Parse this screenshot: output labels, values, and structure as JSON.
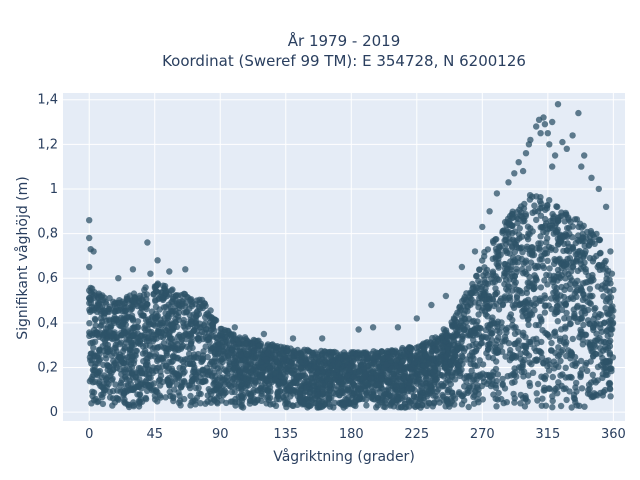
{
  "chart_data": {
    "type": "scatter",
    "title_lines": [
      "År 1979 - 2019",
      "Koordinat (Sweref 99 TM): E 354728, N 6200126"
    ],
    "xlabel": "Vågriktning (grader)",
    "ylabel": "Signifikant våghöjd (m)",
    "xlim": [
      -18,
      368
    ],
    "ylim": [
      -0.04,
      1.43
    ],
    "x_ticks": [
      0,
      45,
      90,
      135,
      180,
      225,
      270,
      315,
      360
    ],
    "x_tick_labels": [
      "0",
      "45",
      "90",
      "135",
      "180",
      "225",
      "270",
      "315",
      "360"
    ],
    "y_ticks": [
      0,
      0.2,
      0.4,
      0.6,
      0.8,
      1.0,
      1.2,
      1.4
    ],
    "y_tick_labels": [
      "0",
      "0,2",
      "0,4",
      "0,6",
      "0,8",
      "1",
      "1,2",
      "1,4"
    ],
    "grid": true,
    "marker_color": "#2e5368",
    "plot_bg": "#e5ecf6",
    "envelope": {
      "x": [
        0,
        10,
        20,
        30,
        45,
        60,
        70,
        80,
        90,
        100,
        110,
        130,
        150,
        170,
        190,
        210,
        230,
        240,
        250,
        260,
        270,
        280,
        290,
        300,
        310,
        320,
        330,
        340,
        350,
        360
      ],
      "y_min": [
        0.03,
        0.03,
        0.02,
        0.02,
        0.02,
        0.02,
        0.02,
        0.02,
        0.02,
        0.02,
        0.02,
        0.02,
        0.02,
        0.02,
        0.02,
        0.02,
        0.02,
        0.02,
        0.02,
        0.02,
        0.02,
        0.02,
        0.02,
        0.02,
        0.02,
        0.02,
        0.02,
        0.02,
        0.03,
        0.03
      ],
      "y_max": [
        0.58,
        0.52,
        0.5,
        0.53,
        0.58,
        0.55,
        0.52,
        0.5,
        0.38,
        0.35,
        0.33,
        0.3,
        0.28,
        0.27,
        0.27,
        0.28,
        0.31,
        0.35,
        0.42,
        0.55,
        0.7,
        0.82,
        0.9,
        0.97,
        0.98,
        0.93,
        0.88,
        0.85,
        0.8,
        0.55
      ]
    },
    "outliers": [
      {
        "x": 0,
        "y": 0.86
      },
      {
        "x": 0,
        "y": 0.78
      },
      {
        "x": 1,
        "y": 0.73
      },
      {
        "x": 3,
        "y": 0.72
      },
      {
        "x": 0,
        "y": 0.65
      },
      {
        "x": 40,
        "y": 0.76
      },
      {
        "x": 42,
        "y": 0.62
      },
      {
        "x": 47,
        "y": 0.68
      },
      {
        "x": 55,
        "y": 0.63
      },
      {
        "x": 66,
        "y": 0.64
      },
      {
        "x": 30,
        "y": 0.64
      },
      {
        "x": 20,
        "y": 0.6
      },
      {
        "x": 100,
        "y": 0.38
      },
      {
        "x": 120,
        "y": 0.35
      },
      {
        "x": 140,
        "y": 0.33
      },
      {
        "x": 160,
        "y": 0.33
      },
      {
        "x": 185,
        "y": 0.37
      },
      {
        "x": 195,
        "y": 0.38
      },
      {
        "x": 212,
        "y": 0.38
      },
      {
        "x": 225,
        "y": 0.42
      },
      {
        "x": 235,
        "y": 0.48
      },
      {
        "x": 245,
        "y": 0.52
      },
      {
        "x": 256,
        "y": 0.65
      },
      {
        "x": 265,
        "y": 0.72
      },
      {
        "x": 270,
        "y": 0.83
      },
      {
        "x": 275,
        "y": 0.9
      },
      {
        "x": 280,
        "y": 0.98
      },
      {
        "x": 288,
        "y": 1.03
      },
      {
        "x": 292,
        "y": 1.07
      },
      {
        "x": 295,
        "y": 1.12
      },
      {
        "x": 300,
        "y": 1.16
      },
      {
        "x": 303,
        "y": 1.22
      },
      {
        "x": 307,
        "y": 1.28
      },
      {
        "x": 309,
        "y": 1.31
      },
      {
        "x": 312,
        "y": 1.32
      },
      {
        "x": 313,
        "y": 1.29
      },
      {
        "x": 315,
        "y": 1.25
      },
      {
        "x": 316,
        "y": 1.2
      },
      {
        "x": 318,
        "y": 1.1
      },
      {
        "x": 320,
        "y": 1.15
      },
      {
        "x": 322,
        "y": 1.38
      },
      {
        "x": 325,
        "y": 1.21
      },
      {
        "x": 328,
        "y": 1.18
      },
      {
        "x": 332,
        "y": 1.24
      },
      {
        "x": 336,
        "y": 1.34
      },
      {
        "x": 340,
        "y": 1.15
      },
      {
        "x": 345,
        "y": 1.05
      },
      {
        "x": 350,
        "y": 1.0
      },
      {
        "x": 355,
        "y": 0.92
      },
      {
        "x": 358,
        "y": 0.72
      },
      {
        "x": 359,
        "y": 0.62
      },
      {
        "x": 338,
        "y": 1.1
      },
      {
        "x": 310,
        "y": 1.25
      },
      {
        "x": 302,
        "y": 1.2
      },
      {
        "x": 298,
        "y": 1.08
      },
      {
        "x": 318,
        "y": 1.3
      }
    ]
  }
}
